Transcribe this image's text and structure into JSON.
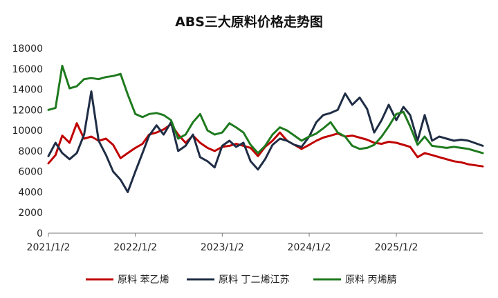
{
  "chart_data": {
    "type": "line",
    "title": "ABS三大原料价格走势图",
    "xlabel": "",
    "ylabel": "",
    "ylim": [
      0,
      18000
    ],
    "y_ticks": [
      0,
      2000,
      4000,
      6000,
      8000,
      10000,
      12000,
      14000,
      16000,
      18000
    ],
    "x_ticks": [
      "2021/1/2",
      "2022/1/2",
      "2023/1/2",
      "2024/1/2",
      "2025/1/2"
    ],
    "x_range": [
      "2021-01-02",
      "2025-12-31"
    ],
    "grid": false,
    "legend_position": "bottom",
    "series": [
      {
        "name": "原料 苯乙烯",
        "color": "#C00000",
        "points": [
          [
            "2021-01-02",
            6800
          ],
          [
            "2021-02-01",
            7600
          ],
          [
            "2021-03-01",
            9500
          ],
          [
            "2021-04-01",
            8800
          ],
          [
            "2021-05-01",
            10700
          ],
          [
            "2021-06-01",
            9200
          ],
          [
            "2021-07-01",
            9400
          ],
          [
            "2021-08-01",
            9000
          ],
          [
            "2021-09-01",
            9200
          ],
          [
            "2021-10-01",
            8600
          ],
          [
            "2021-11-01",
            7300
          ],
          [
            "2021-12-01",
            7800
          ],
          [
            "2022-01-02",
            8300
          ],
          [
            "2022-02-01",
            8700
          ],
          [
            "2022-03-01",
            9600
          ],
          [
            "2022-04-01",
            9800
          ],
          [
            "2022-05-01",
            10100
          ],
          [
            "2022-06-01",
            10600
          ],
          [
            "2022-07-01",
            9600
          ],
          [
            "2022-08-01",
            8800
          ],
          [
            "2022-09-01",
            9500
          ],
          [
            "2022-10-01",
            8800
          ],
          [
            "2022-11-01",
            8300
          ],
          [
            "2022-12-01",
            8000
          ],
          [
            "2023-01-02",
            8400
          ],
          [
            "2023-02-01",
            8500
          ],
          [
            "2023-03-01",
            8700
          ],
          [
            "2023-04-01",
            8500
          ],
          [
            "2023-05-01",
            8300
          ],
          [
            "2023-06-01",
            7500
          ],
          [
            "2023-07-01",
            8400
          ],
          [
            "2023-08-01",
            9000
          ],
          [
            "2023-09-01",
            9800
          ],
          [
            "2023-10-01",
            9000
          ],
          [
            "2023-11-01",
            8600
          ],
          [
            "2023-12-01",
            8200
          ],
          [
            "2024-01-02",
            8600
          ],
          [
            "2024-02-01",
            9000
          ],
          [
            "2024-03-01",
            9300
          ],
          [
            "2024-04-01",
            9500
          ],
          [
            "2024-05-01",
            9700
          ],
          [
            "2024-06-01",
            9400
          ],
          [
            "2024-07-01",
            9500
          ],
          [
            "2024-08-01",
            9300
          ],
          [
            "2024-09-01",
            9100
          ],
          [
            "2024-10-01",
            8800
          ],
          [
            "2024-11-01",
            8700
          ],
          [
            "2024-12-01",
            8900
          ],
          [
            "2025-01-02",
            8800
          ],
          [
            "2025-02-01",
            8600
          ],
          [
            "2025-03-01",
            8400
          ],
          [
            "2025-04-01",
            7400
          ],
          [
            "2025-05-01",
            7800
          ],
          [
            "2025-06-01",
            7600
          ],
          [
            "2025-07-01",
            7400
          ],
          [
            "2025-08-01",
            7200
          ],
          [
            "2025-09-01",
            7000
          ],
          [
            "2025-10-01",
            6900
          ],
          [
            "2025-11-01",
            6700
          ],
          [
            "2025-12-31",
            6500
          ]
        ]
      },
      {
        "name": "原料 丁二烯江苏",
        "color": "#1F2D45",
        "points": [
          [
            "2021-01-02",
            7500
          ],
          [
            "2021-02-01",
            8800
          ],
          [
            "2021-03-01",
            7800
          ],
          [
            "2021-04-01",
            7200
          ],
          [
            "2021-05-01",
            7800
          ],
          [
            "2021-06-01",
            9600
          ],
          [
            "2021-07-01",
            13800
          ],
          [
            "2021-08-01",
            9000
          ],
          [
            "2021-09-01",
            7600
          ],
          [
            "2021-10-01",
            6000
          ],
          [
            "2021-11-01",
            5200
          ],
          [
            "2021-12-01",
            4000
          ],
          [
            "2022-01-02",
            6000
          ],
          [
            "2022-02-01",
            7800
          ],
          [
            "2022-03-01",
            9500
          ],
          [
            "2022-04-01",
            10500
          ],
          [
            "2022-05-01",
            9600
          ],
          [
            "2022-06-01",
            10800
          ],
          [
            "2022-07-01",
            8000
          ],
          [
            "2022-08-01",
            8500
          ],
          [
            "2022-09-01",
            9600
          ],
          [
            "2022-10-01",
            7400
          ],
          [
            "2022-11-01",
            7000
          ],
          [
            "2022-12-01",
            6400
          ],
          [
            "2023-01-02",
            8500
          ],
          [
            "2023-02-01",
            9000
          ],
          [
            "2023-03-01",
            8400
          ],
          [
            "2023-04-01",
            8800
          ],
          [
            "2023-05-01",
            7000
          ],
          [
            "2023-06-01",
            6200
          ],
          [
            "2023-07-01",
            7200
          ],
          [
            "2023-08-01",
            8600
          ],
          [
            "2023-09-01",
            9200
          ],
          [
            "2023-10-01",
            9000
          ],
          [
            "2023-11-01",
            8600
          ],
          [
            "2023-12-01",
            8400
          ],
          [
            "2024-01-02",
            9400
          ],
          [
            "2024-02-01",
            10800
          ],
          [
            "2024-03-01",
            11500
          ],
          [
            "2024-04-01",
            11700
          ],
          [
            "2024-05-01",
            12000
          ],
          [
            "2024-06-01",
            13600
          ],
          [
            "2024-07-01",
            12500
          ],
          [
            "2024-08-01",
            13200
          ],
          [
            "2024-09-01",
            12100
          ],
          [
            "2024-10-01",
            9800
          ],
          [
            "2024-11-01",
            11000
          ],
          [
            "2024-12-01",
            12500
          ],
          [
            "2025-01-02",
            11000
          ],
          [
            "2025-02-01",
            12300
          ],
          [
            "2025-03-01",
            11500
          ],
          [
            "2025-04-01",
            9000
          ],
          [
            "2025-05-01",
            11500
          ],
          [
            "2025-06-01",
            9000
          ],
          [
            "2025-07-01",
            9400
          ],
          [
            "2025-08-01",
            9200
          ],
          [
            "2025-09-01",
            9000
          ],
          [
            "2025-10-01",
            9100
          ],
          [
            "2025-11-01",
            9000
          ],
          [
            "2025-12-31",
            8500
          ]
        ]
      },
      {
        "name": "原料 丙烯腈",
        "color": "#1E7A1E",
        "points": [
          [
            "2021-01-02",
            12000
          ],
          [
            "2021-02-01",
            12200
          ],
          [
            "2021-03-01",
            16300
          ],
          [
            "2021-04-01",
            14100
          ],
          [
            "2021-05-01",
            14300
          ],
          [
            "2021-06-01",
            15000
          ],
          [
            "2021-07-01",
            15100
          ],
          [
            "2021-08-01",
            15000
          ],
          [
            "2021-09-01",
            15200
          ],
          [
            "2021-10-01",
            15300
          ],
          [
            "2021-11-01",
            15500
          ],
          [
            "2021-12-01",
            13500
          ],
          [
            "2022-01-02",
            11600
          ],
          [
            "2022-02-01",
            11300
          ],
          [
            "2022-03-01",
            11600
          ],
          [
            "2022-04-01",
            11700
          ],
          [
            "2022-05-01",
            11500
          ],
          [
            "2022-06-01",
            11000
          ],
          [
            "2022-07-01",
            9200
          ],
          [
            "2022-08-01",
            9600
          ],
          [
            "2022-09-01",
            10800
          ],
          [
            "2022-10-01",
            11600
          ],
          [
            "2022-11-01",
            10000
          ],
          [
            "2022-12-01",
            9600
          ],
          [
            "2023-01-02",
            9800
          ],
          [
            "2023-02-01",
            10700
          ],
          [
            "2023-03-01",
            10300
          ],
          [
            "2023-04-01",
            9800
          ],
          [
            "2023-05-01",
            8600
          ],
          [
            "2023-06-01",
            7800
          ],
          [
            "2023-07-01",
            8500
          ],
          [
            "2023-08-01",
            9600
          ],
          [
            "2023-09-01",
            10300
          ],
          [
            "2023-10-01",
            10000
          ],
          [
            "2023-11-01",
            9500
          ],
          [
            "2023-12-01",
            9000
          ],
          [
            "2024-01-02",
            9400
          ],
          [
            "2024-02-01",
            9700
          ],
          [
            "2024-03-01",
            10200
          ],
          [
            "2024-04-01",
            10800
          ],
          [
            "2024-05-01",
            9800
          ],
          [
            "2024-06-01",
            9400
          ],
          [
            "2024-07-01",
            8500
          ],
          [
            "2024-08-01",
            8200
          ],
          [
            "2024-09-01",
            8300
          ],
          [
            "2024-10-01",
            8600
          ],
          [
            "2024-11-01",
            9400
          ],
          [
            "2024-12-01",
            10400
          ],
          [
            "2025-01-02",
            11600
          ],
          [
            "2025-02-01",
            11800
          ],
          [
            "2025-03-01",
            10400
          ],
          [
            "2025-04-01",
            8600
          ],
          [
            "2025-05-01",
            9400
          ],
          [
            "2025-06-01",
            8500
          ],
          [
            "2025-07-01",
            8400
          ],
          [
            "2025-08-01",
            8300
          ],
          [
            "2025-09-01",
            8400
          ],
          [
            "2025-10-01",
            8300
          ],
          [
            "2025-11-01",
            8200
          ],
          [
            "2025-12-31",
            7800
          ]
        ]
      }
    ]
  }
}
